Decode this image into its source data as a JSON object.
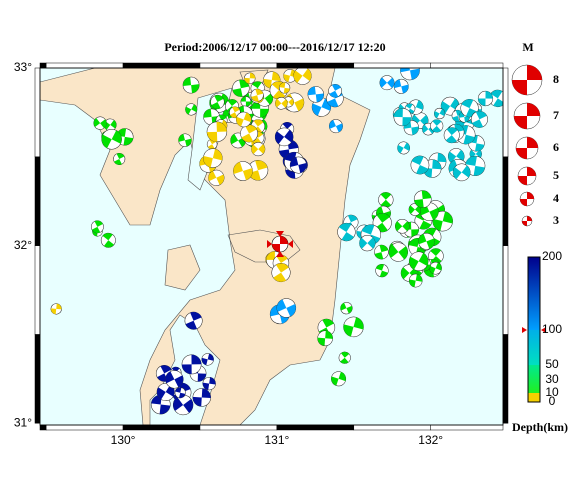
{
  "map": {
    "title": "Period:2006/12/17 00:00---2016/12/17 12:20",
    "lat_ticks": [
      {
        "value": 33,
        "label": "33°"
      },
      {
        "value": 32,
        "label": "32°"
      },
      {
        "value": 31,
        "label": "31°"
      }
    ],
    "lon_ticks": [
      {
        "value": 130,
        "label": "130°"
      },
      {
        "value": 131,
        "label": "131°"
      },
      {
        "value": 132,
        "label": "132°"
      }
    ],
    "magnitude_legend": {
      "title": "M",
      "values": [
        8,
        7,
        6,
        5,
        4,
        3
      ]
    },
    "depth_legend": {
      "title": "Depth(km)",
      "ticks": [
        200,
        100,
        50,
        30,
        10,
        0
      ]
    }
  }
}
